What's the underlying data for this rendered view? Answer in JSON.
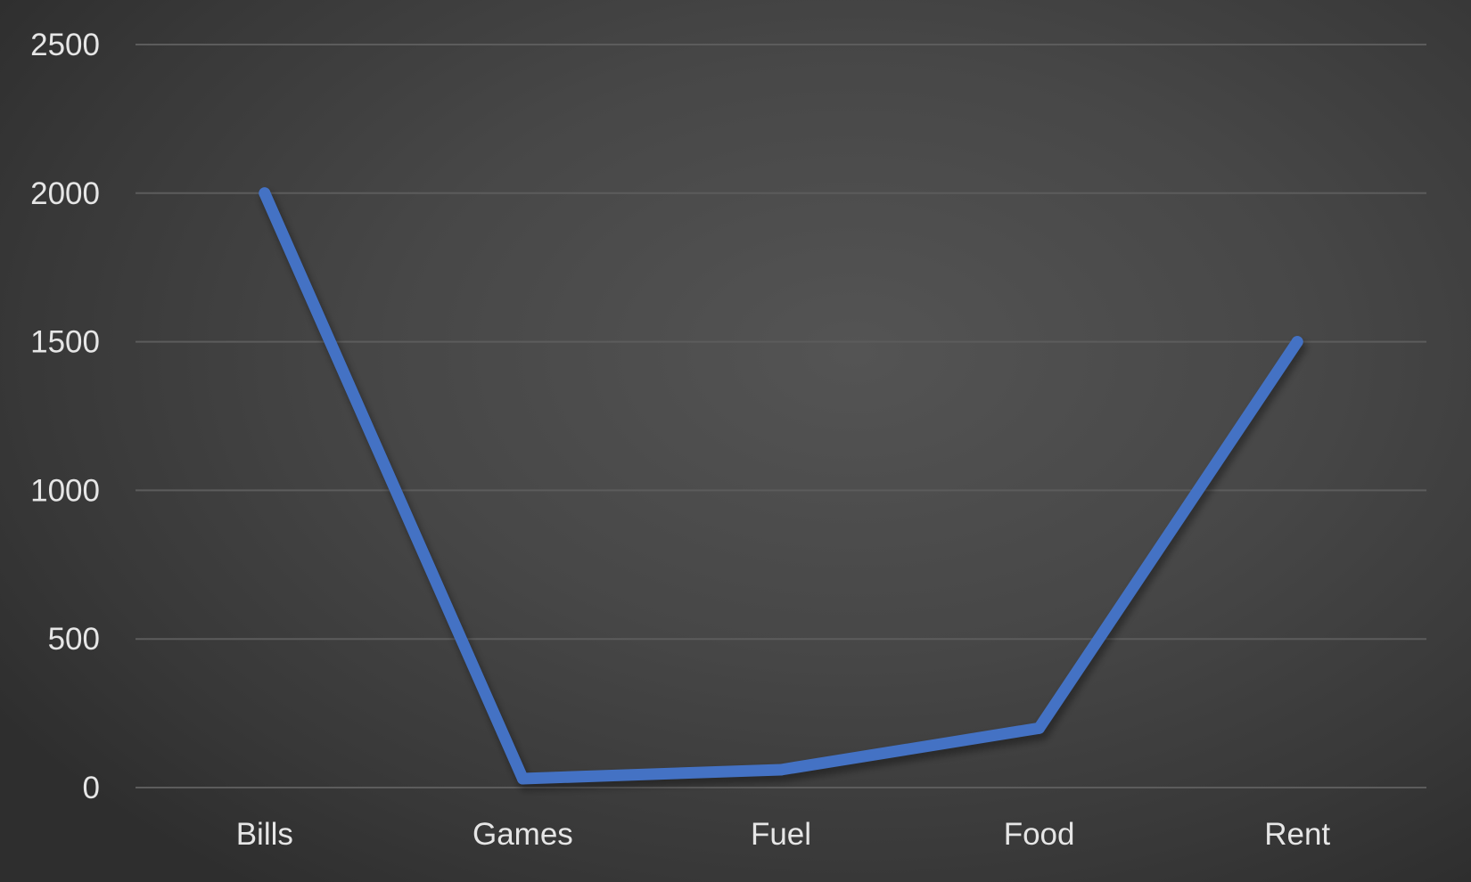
{
  "chart_data": {
    "type": "line",
    "title": "",
    "xlabel": "",
    "ylabel": "",
    "categories": [
      "Bills",
      "Games",
      "Fuel",
      "Food",
      "Rent"
    ],
    "series": [
      {
        "values": [
          2000,
          30,
          60,
          200,
          1500
        ],
        "color": "#4472C4"
      }
    ],
    "ylim": [
      0,
      2500
    ],
    "yticks": [
      0,
      500,
      1000,
      1500,
      2000,
      2500
    ],
    "grid": true,
    "legend": "none"
  }
}
